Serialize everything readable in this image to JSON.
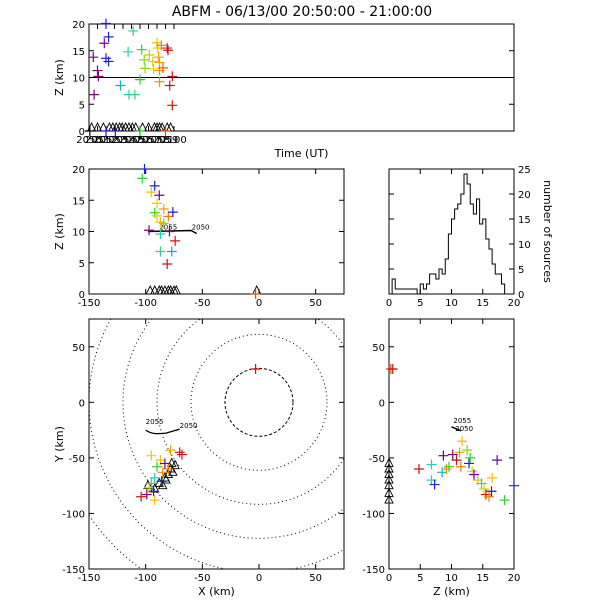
{
  "title": "ABFM - 06/13/00 20:50:00 - 21:00:00",
  "chart_data": [
    {
      "id": "time-height",
      "type": "scatter",
      "xlabel": "Time (UT)",
      "ylabel": "Z (km)",
      "xlim": [
        2050,
        2100
      ],
      "ylim": [
        0,
        20
      ],
      "xticks": [
        "2050",
        "2051",
        "2052",
        "2053",
        "2054",
        "2055",
        "2056",
        "2057",
        "2058",
        "2059",
        "2100"
      ],
      "xtick_values": [
        2050,
        2051,
        2052,
        2053,
        2054,
        2055,
        2056,
        2057,
        2058,
        2059,
        2060
      ],
      "yticks": [
        "0",
        "5",
        "10",
        "15",
        "20"
      ],
      "ytick_values": [
        0,
        5,
        10,
        15,
        20
      ],
      "reference_line_z": 10,
      "sources": [
        {
          "x": 2050.5,
          "y": 13.8,
          "color": "#7a007a"
        },
        {
          "x": 2050.6,
          "y": 6.8,
          "color": "#7a007a"
        },
        {
          "x": 2051.0,
          "y": 11.3,
          "color": "#7a007a"
        },
        {
          "x": 2051.1,
          "y": 10.2,
          "color": "#7a007a"
        },
        {
          "x": 2051.8,
          "y": 16.4,
          "color": "#7000a0"
        },
        {
          "x": 2052.0,
          "y": 20.1,
          "color": "#2020d0"
        },
        {
          "x": 2052.0,
          "y": 13.6,
          "color": "#2020d0"
        },
        {
          "x": 2052.3,
          "y": 17.6,
          "color": "#2020d0"
        },
        {
          "x": 2052.3,
          "y": 13.0,
          "color": "#2020d0"
        },
        {
          "x": 2053.7,
          "y": 8.5,
          "color": "#10b0c0"
        },
        {
          "x": 2054.6,
          "y": 14.8,
          "color": "#20d0b0"
        },
        {
          "x": 2054.7,
          "y": 6.8,
          "color": "#20d0b0"
        },
        {
          "x": 2055.2,
          "y": 18.7,
          "color": "#30d090"
        },
        {
          "x": 2055.4,
          "y": 6.8,
          "color": "#30d090"
        },
        {
          "x": 2056.0,
          "y": 9.6,
          "color": "#30d030"
        },
        {
          "x": 2056.2,
          "y": 15.2,
          "color": "#30d030"
        },
        {
          "x": 2056.5,
          "y": 13.3,
          "color": "#90d020"
        },
        {
          "x": 2056.6,
          "y": 11.7,
          "color": "#90d020"
        },
        {
          "x": 2057.1,
          "y": 14.2,
          "color": "#c0d000"
        },
        {
          "x": 2057.5,
          "y": 13.0,
          "color": "#e0d000"
        },
        {
          "x": 2057.6,
          "y": 11.6,
          "color": "#e0d000"
        },
        {
          "x": 2058.0,
          "y": 16.5,
          "color": "#f0c000"
        },
        {
          "x": 2058.1,
          "y": 15.5,
          "color": "#f0c000"
        },
        {
          "x": 2058.2,
          "y": 13.8,
          "color": "#f0a000"
        },
        {
          "x": 2058.3,
          "y": 12.8,
          "color": "#f0a000"
        },
        {
          "x": 2058.3,
          "y": 11.3,
          "color": "#f09000"
        },
        {
          "x": 2058.3,
          "y": 9.2,
          "color": "#f09000"
        },
        {
          "x": 2058.5,
          "y": 16.0,
          "color": "#f08000"
        },
        {
          "x": 2058.7,
          "y": 11.8,
          "color": "#f06000"
        },
        {
          "x": 2059.2,
          "y": 15.5,
          "color": "#d01010"
        },
        {
          "x": 2059.3,
          "y": 15.1,
          "color": "#d01010"
        },
        {
          "x": 2059.5,
          "y": 8.5,
          "color": "#d01010"
        },
        {
          "x": 2059.8,
          "y": 10.2,
          "color": "#d01010"
        },
        {
          "x": 2059.8,
          "y": 4.8,
          "color": "#d01010"
        },
        {
          "x": 2050.1,
          "y": 0.0,
          "color": "#000000"
        },
        {
          "x": 2052.0,
          "y": 0.0,
          "color": "#2020d0"
        },
        {
          "x": 2053.1,
          "y": 0.0,
          "color": "#2020d0"
        },
        {
          "x": 2056.0,
          "y": 0.0,
          "color": "#20c020"
        },
        {
          "x": 2059.0,
          "y": 0.0,
          "color": "#e05000"
        }
      ],
      "station_triangles": [
        2050.3,
        2051.0,
        2051.7,
        2052.4,
        2052.8,
        2053.2,
        2053.6,
        2053.9,
        2054.3,
        2054.7,
        2055.1,
        2055.5,
        2056.3,
        2057.0,
        2057.7,
        2058.0,
        2058.3,
        2058.6,
        2059.2,
        2059.6
      ]
    },
    {
      "id": "x-z",
      "type": "scatter",
      "xlabel": "",
      "ylabel": "Z (km)",
      "xlim": [
        -150,
        75
      ],
      "ylim": [
        0,
        20
      ],
      "xticks": [
        "-150",
        "-100",
        "-50",
        "0",
        "50"
      ],
      "xtick_values": [
        -150,
        -100,
        -50,
        0,
        50
      ],
      "yticks": [
        "0",
        "5",
        "10",
        "15",
        "20"
      ],
      "ytick_values": [
        0,
        5,
        10,
        15,
        20
      ],
      "annotations": [
        "2055",
        "2050"
      ],
      "sources": [
        {
          "x": -101,
          "y": 20.0,
          "color": "#2020d0"
        },
        {
          "x": -103,
          "y": 18.5,
          "color": "#30d030"
        },
        {
          "x": -92,
          "y": 17.3,
          "color": "#2020d0"
        },
        {
          "x": -95,
          "y": 16.3,
          "color": "#f0c000"
        },
        {
          "x": -88,
          "y": 15.8,
          "color": "#7000a0"
        },
        {
          "x": -90,
          "y": 14.5,
          "color": "#e0d000"
        },
        {
          "x": -84,
          "y": 13.6,
          "color": "#f0a000"
        },
        {
          "x": -92,
          "y": 13.0,
          "color": "#30d030"
        },
        {
          "x": -90,
          "y": 12.5,
          "color": "#e0d000"
        },
        {
          "x": -80,
          "y": 12.4,
          "color": "#f08000"
        },
        {
          "x": -76,
          "y": 13.1,
          "color": "#2020d0"
        },
        {
          "x": -87,
          "y": 11.5,
          "color": "#f0c000"
        },
        {
          "x": -84,
          "y": 11.3,
          "color": "#90d020"
        },
        {
          "x": -97,
          "y": 10.2,
          "color": "#7a007a"
        },
        {
          "x": -79,
          "y": 10.0,
          "color": "#7a007a"
        },
        {
          "x": -87,
          "y": 9.6,
          "color": "#20d0b0"
        },
        {
          "x": -74,
          "y": 8.5,
          "color": "#d01010"
        },
        {
          "x": -87,
          "y": 6.8,
          "color": "#30d090"
        },
        {
          "x": -77,
          "y": 6.8,
          "color": "#10b0c0"
        },
        {
          "x": -81,
          "y": 4.8,
          "color": "#d01010"
        },
        {
          "x": -3,
          "y": 0.0,
          "color": "#e05000"
        }
      ],
      "station_triangles": [
        -96,
        -92,
        -88,
        -86,
        -83,
        -80,
        -78,
        -75,
        -73,
        -2
      ]
    },
    {
      "id": "altitude-histogram",
      "type": "line",
      "xlabel": "",
      "ylabel": "number of sources",
      "xlim": [
        0,
        20
      ],
      "ylim": [
        0,
        25
      ],
      "xticks": [
        "0",
        "5",
        "10",
        "15",
        "20"
      ],
      "xtick_values": [
        0,
        5,
        10,
        15,
        20
      ],
      "yticks": [
        "0",
        "5",
        "10",
        "15",
        "20",
        "25"
      ],
      "ytick_values": [
        0,
        5,
        10,
        15,
        20,
        25
      ],
      "bins": [
        0.0,
        0.5,
        1.0,
        1.5,
        2.0,
        2.5,
        3.0,
        3.5,
        4.0,
        4.5,
        5.0,
        5.5,
        6.0,
        6.5,
        7.0,
        7.5,
        8.0,
        8.5,
        9.0,
        9.5,
        10.0,
        10.5,
        11.0,
        11.5,
        12.0,
        12.5,
        13.0,
        13.5,
        14.0,
        14.5,
        15.0,
        15.5,
        16.0,
        16.5,
        17.0,
        17.5,
        18.0,
        18.5,
        19.0,
        19.5
      ],
      "counts": [
        0,
        3,
        1,
        1,
        1,
        1,
        1,
        1,
        1,
        0,
        2,
        1,
        2,
        4,
        4,
        3,
        5,
        4,
        7,
        12,
        15,
        17,
        18,
        20,
        24,
        22,
        18,
        16,
        19,
        14,
        15,
        11,
        9,
        6,
        4,
        4,
        2,
        0,
        0,
        0
      ]
    },
    {
      "id": "x-y",
      "type": "scatter",
      "xlabel": "X (km)",
      "ylabel": "Y (km)",
      "xlim": [
        -150,
        75
      ],
      "ylim": [
        -150,
        75
      ],
      "xticks": [
        "-150",
        "-100",
        "-50",
        "0",
        "50"
      ],
      "xtick_values": [
        -150,
        -100,
        -50,
        0,
        50
      ],
      "yticks": [
        "-150",
        "-100",
        "-50",
        "0",
        "50"
      ],
      "ytick_values": [
        -150,
        -100,
        -50,
        0,
        50
      ],
      "range_rings_km": [
        30,
        60,
        90,
        120,
        150,
        180
      ],
      "annotations": [
        "2055",
        "2050"
      ],
      "sources": [
        {
          "x": -3,
          "y": 30,
          "color": "#d01010"
        },
        {
          "x": -95,
          "y": -48,
          "color": "#e0d000"
        },
        {
          "x": -87,
          "y": -52,
          "color": "#f0c000"
        },
        {
          "x": -78,
          "y": -43,
          "color": "#f0a000"
        },
        {
          "x": -70,
          "y": -45,
          "color": "#d01010"
        },
        {
          "x": -68,
          "y": -47,
          "color": "#d01010"
        },
        {
          "x": -83,
          "y": -55,
          "color": "#7000a0"
        },
        {
          "x": -90,
          "y": -58,
          "color": "#30d030"
        },
        {
          "x": -80,
          "y": -60,
          "color": "#f08000"
        },
        {
          "x": -85,
          "y": -63,
          "color": "#f09000"
        },
        {
          "x": -92,
          "y": -68,
          "color": "#20d0b0"
        },
        {
          "x": -86,
          "y": -71,
          "color": "#2020d0"
        },
        {
          "x": -95,
          "y": -73,
          "color": "#30d090"
        },
        {
          "x": -97,
          "y": -77,
          "color": "#e0d000"
        },
        {
          "x": -93,
          "y": -80,
          "color": "#2020d0"
        },
        {
          "x": -99,
          "y": -83,
          "color": "#7a007a"
        },
        {
          "x": -104,
          "y": -85,
          "color": "#d01010"
        },
        {
          "x": -92,
          "y": -88,
          "color": "#f0c000"
        }
      ],
      "station_triangles": [
        [
          -98,
          -75
        ],
        [
          -92,
          -78
        ],
        [
          -88,
          -73
        ],
        [
          -83,
          -68
        ],
        [
          -80,
          -65
        ],
        [
          -78,
          -60
        ],
        [
          -76,
          -63
        ],
        [
          -82,
          -70
        ],
        [
          -74,
          -57
        ],
        [
          -77,
          -55
        ],
        [
          -85,
          -75
        ]
      ]
    },
    {
      "id": "z-y",
      "type": "scatter",
      "xlabel": "Z (km)",
      "ylabel": "",
      "xlim": [
        0,
        20
      ],
      "ylim": [
        -150,
        75
      ],
      "xticks": [
        "0",
        "5",
        "10",
        "15",
        "20"
      ],
      "xtick_values": [
        0,
        5,
        10,
        15,
        20
      ],
      "yticks": [
        "-150",
        "-100",
        "-50",
        "0",
        "50"
      ],
      "ytick_values": [
        -150,
        -100,
        -50,
        0,
        50
      ],
      "annotations": [
        "2055",
        "2050"
      ],
      "sources": [
        {
          "x": 0.3,
          "y": 30,
          "color": "#e05000"
        },
        {
          "x": 0.6,
          "y": 30,
          "color": "#d01010"
        },
        {
          "x": 4.8,
          "y": -60,
          "color": "#d01010"
        },
        {
          "x": 6.8,
          "y": -56,
          "color": "#20d0b0"
        },
        {
          "x": 6.8,
          "y": -70,
          "color": "#30d090"
        },
        {
          "x": 7.3,
          "y": -74,
          "color": "#2020d0"
        },
        {
          "x": 8.5,
          "y": -63,
          "color": "#10b0c0"
        },
        {
          "x": 8.7,
          "y": -48,
          "color": "#7a007a"
        },
        {
          "x": 9.2,
          "y": -60,
          "color": "#f09000"
        },
        {
          "x": 9.6,
          "y": -58,
          "color": "#30d030"
        },
        {
          "x": 10.2,
          "y": -47,
          "color": "#7a007a"
        },
        {
          "x": 10.8,
          "y": -52,
          "color": "#d01010"
        },
        {
          "x": 11.3,
          "y": -45,
          "color": "#f0a000"
        },
        {
          "x": 11.5,
          "y": -58,
          "color": "#f08000"
        },
        {
          "x": 11.7,
          "y": -35,
          "color": "#f0c000"
        },
        {
          "x": 12.5,
          "y": -43,
          "color": "#90d020"
        },
        {
          "x": 12.8,
          "y": -55,
          "color": "#2020d0"
        },
        {
          "x": 13.0,
          "y": -50,
          "color": "#30d030"
        },
        {
          "x": 13.3,
          "y": -62,
          "color": "#e0d000"
        },
        {
          "x": 13.6,
          "y": -65,
          "color": "#7000a0"
        },
        {
          "x": 14.2,
          "y": -70,
          "color": "#f0c000"
        },
        {
          "x": 14.8,
          "y": -73,
          "color": "#20d0b0"
        },
        {
          "x": 15.2,
          "y": -78,
          "color": "#e0d000"
        },
        {
          "x": 15.5,
          "y": -83,
          "color": "#d01010"
        },
        {
          "x": 16.0,
          "y": -85,
          "color": "#f08000"
        },
        {
          "x": 16.4,
          "y": -80,
          "color": "#7000a0"
        },
        {
          "x": 16.5,
          "y": -68,
          "color": "#f0c000"
        },
        {
          "x": 17.3,
          "y": -52,
          "color": "#7000a0"
        },
        {
          "x": 18.5,
          "y": -88,
          "color": "#30d030"
        },
        {
          "x": 20.0,
          "y": -75,
          "color": "#2020d0"
        }
      ],
      "station_triangles": [
        [
          0.0,
          -55
        ],
        [
          0.0,
          -60
        ],
        [
          0.0,
          -65
        ],
        [
          0.0,
          -70
        ],
        [
          0.0,
          -75
        ],
        [
          0.0,
          -82
        ],
        [
          0.0,
          -88
        ]
      ]
    }
  ]
}
